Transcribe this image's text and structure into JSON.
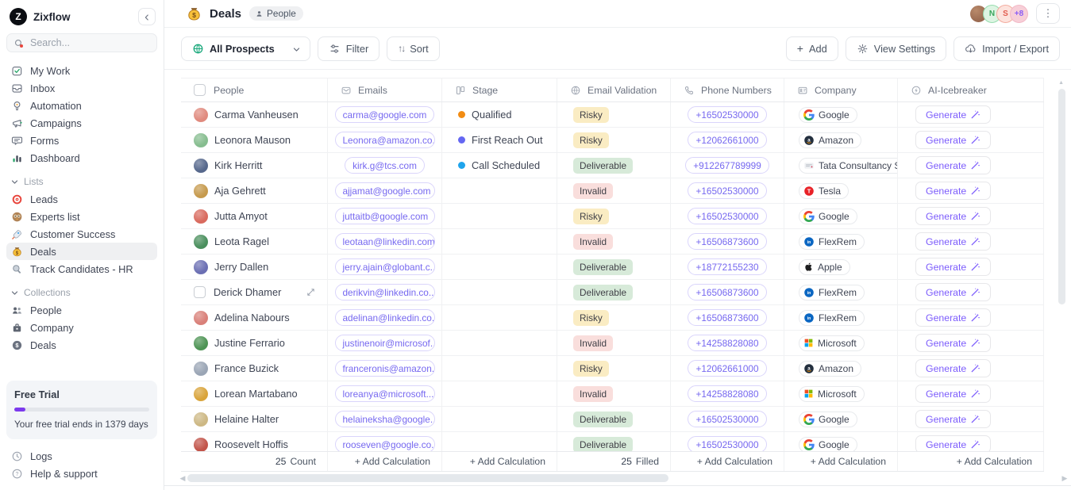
{
  "app": {
    "name": "Zixflow",
    "logo_letter": "Z"
  },
  "sidebar": {
    "search": {
      "placeholder": "Search..."
    },
    "nav_items": [
      {
        "label": "My Work",
        "icon": "task-check-icon"
      },
      {
        "label": "Inbox",
        "icon": "inbox-icon"
      },
      {
        "label": "Automation",
        "icon": "automation-bulb-icon"
      },
      {
        "label": "Campaigns",
        "icon": "megaphone-icon"
      },
      {
        "label": "Forms",
        "icon": "form-chat-icon"
      },
      {
        "label": "Dashboard",
        "icon": "bar-chart-icon"
      }
    ],
    "sections": [
      {
        "label": "Lists",
        "items": [
          {
            "label": "Leads",
            "icon": "target-icon",
            "active": false
          },
          {
            "label": "Experts list",
            "icon": "owl-icon",
            "active": false
          },
          {
            "label": "Customer Success",
            "icon": "rocket-icon",
            "active": false
          },
          {
            "label": "Deals",
            "icon": "moneybag-icon",
            "active": true
          },
          {
            "label": "Track Candidates - HR",
            "icon": "magnifier-icon",
            "active": false
          }
        ]
      },
      {
        "label": "Collections",
        "items": [
          {
            "label": "People",
            "icon": "people-icon",
            "active": false
          },
          {
            "label": "Company",
            "icon": "building-icon",
            "active": false
          },
          {
            "label": "Deals",
            "icon": "dollar-icon",
            "active": false
          }
        ]
      }
    ],
    "trial": {
      "title": "Free Trial",
      "progress_percent": 8,
      "note": "Your free trial ends in 1379 days"
    },
    "bottom_items": [
      {
        "label": "Logs",
        "icon": "logs-icon"
      },
      {
        "label": "Help & support",
        "icon": "help-icon"
      }
    ]
  },
  "header": {
    "title": "Deals",
    "badge": "People",
    "avatars": [
      {
        "type": "photo",
        "bg": "#8A5A44"
      },
      {
        "type": "initial",
        "text": "N",
        "bg": "#DDF5E3",
        "border": "#97DCAE",
        "color": "#3BA55D"
      },
      {
        "type": "initial",
        "text": "S",
        "bg": "#FDE3DD",
        "border": "#F3AC9F",
        "color": "#E25C4F"
      },
      {
        "type": "initial",
        "text": "+8",
        "bg": "#F7CFD8",
        "border": "#F2B9C6",
        "color": "#8B5CF6"
      }
    ]
  },
  "toolbar": {
    "view_selector": {
      "label": "All Prospects",
      "icon": "globe-icon"
    },
    "filter": {
      "label": "Filter",
      "icon": "sliders-icon"
    },
    "sort": {
      "label": "Sort",
      "icon": "sort-arrows-icon"
    },
    "add": {
      "label": "Add",
      "icon": "plus-icon"
    },
    "view_settings": {
      "label": "View Settings",
      "icon": "gear-icon"
    },
    "import_export": {
      "label": "Import / Export",
      "icon": "cloud-download-icon"
    }
  },
  "table": {
    "columns": [
      {
        "label": "People",
        "icon": ""
      },
      {
        "label": "Emails",
        "icon": "envelope-icon"
      },
      {
        "label": "Stage",
        "icon": "kanban-icon"
      },
      {
        "label": "Email Validation",
        "icon": "globe-grid-icon"
      },
      {
        "label": "Phone Numbers",
        "icon": "phone-icon"
      },
      {
        "label": "Company",
        "icon": "id-card-icon"
      },
      {
        "label": "AI-Icebreaker",
        "icon": "ai-spark-icon"
      }
    ],
    "generate_label": "Generate",
    "stage_colors": {
      "Qualified": "#F28C13",
      "First Reach Out": "#6467F2",
      "Call Scheduled": "#1FA4EC"
    },
    "validation_colors": {
      "Risky": "#FAECC3",
      "Deliverable": "#D7EAD9",
      "Invalid": "#F9DEDC"
    },
    "rows": [
      {
        "name": "Carma Vanheusen",
        "avatar_color": "#E08A7E",
        "email": "carma@google.com",
        "stage": "Qualified",
        "validation": "Risky",
        "phone": "+16502530000",
        "company": "Google",
        "logo": "google",
        "checkbox": false,
        "expand": false
      },
      {
        "name": "Leonora Mauson",
        "avatar_color": "#86BD8F",
        "email": "Leonora@amazon.co...",
        "stage": "First Reach Out",
        "validation": "Risky",
        "phone": "+12062661000",
        "company": "Amazon",
        "logo": "amazon",
        "checkbox": false,
        "expand": false
      },
      {
        "name": "Kirk Herritt",
        "avatar_color": "#56688C",
        "email": "kirk.g@tcs.com",
        "stage": "Call Scheduled",
        "validation": "Deliverable",
        "phone": "+912267789999",
        "company": "Tata Consultancy Servi",
        "logo": "tcs",
        "checkbox": false,
        "expand": false
      },
      {
        "name": "Aja Gehrett",
        "avatar_color": "#C69A4D",
        "email": "ajjamat@google.com",
        "stage": "",
        "validation": "Invalid",
        "phone": "+16502530000",
        "company": "Tesla",
        "logo": "tesla",
        "checkbox": false,
        "expand": false
      },
      {
        "name": "Jutta Amyot",
        "avatar_color": "#D96A5E",
        "email": "juttaitb@google.com",
        "stage": "",
        "validation": "Risky",
        "phone": "+16502530000",
        "company": "Google",
        "logo": "google",
        "checkbox": false,
        "expand": false
      },
      {
        "name": "Leota Ragel",
        "avatar_color": "#4A8F5D",
        "email": "leotaan@linkedin.com",
        "stage": "",
        "validation": "Invalid",
        "phone": "+16506873600",
        "company": "FlexRem",
        "logo": "linkedin",
        "checkbox": false,
        "expand": false
      },
      {
        "name": "Jerry Dallen",
        "avatar_color": "#6B6FB3",
        "email": "jerry.ajain@globant.c...",
        "stage": "",
        "validation": "Deliverable",
        "phone": "+18772155230",
        "company": "Apple",
        "logo": "apple",
        "checkbox": false,
        "expand": false
      },
      {
        "name": "Derick Dhamer",
        "avatar_color": "#B9BEC7",
        "email": "derikvin@linkedin.co...",
        "stage": "",
        "validation": "Deliverable",
        "phone": "+16506873600",
        "company": "FlexRem",
        "logo": "linkedin",
        "checkbox": true,
        "expand": true
      },
      {
        "name": "Adelina Nabours",
        "avatar_color": "#D98079",
        "email": "adelinan@linkedin.co...",
        "stage": "",
        "validation": "Risky",
        "phone": "+16506873600",
        "company": "FlexRem",
        "logo": "linkedin",
        "checkbox": false,
        "expand": false
      },
      {
        "name": "Justine Ferrario",
        "avatar_color": "#4E9455",
        "email": "justinenoir@microsof...",
        "stage": "",
        "validation": "Invalid",
        "phone": "+14258828080",
        "company": "Microsoft",
        "logo": "microsoft",
        "checkbox": false,
        "expand": false
      },
      {
        "name": "France Buzick",
        "avatar_color": "#9AA5B5",
        "email": "franceronis@amazon...",
        "stage": "",
        "validation": "Risky",
        "phone": "+12062661000",
        "company": "Amazon",
        "logo": "amazon",
        "checkbox": false,
        "expand": false
      },
      {
        "name": "Lorean Martabano",
        "avatar_color": "#D9A43B",
        "email": "loreanya@microsoft....",
        "stage": "",
        "validation": "Invalid",
        "phone": "+14258828080",
        "company": "Microsoft",
        "logo": "microsoft",
        "checkbox": false,
        "expand": false
      },
      {
        "name": "Helaine Halter",
        "avatar_color": "#CDB884",
        "email": "helaineksha@google....",
        "stage": "",
        "validation": "Deliverable",
        "phone": "+16502530000",
        "company": "Google",
        "logo": "google",
        "checkbox": false,
        "expand": false
      },
      {
        "name": "Roosevelt Hoffis",
        "avatar_color": "#C2544A",
        "email": "rooseven@google.co...",
        "stage": "",
        "validation": "Deliverable",
        "phone": "+16502530000",
        "company": "Google",
        "logo": "google",
        "checkbox": false,
        "expand": false
      }
    ],
    "footer": {
      "count_value": "25",
      "count_label": "Count",
      "filled_value": "25",
      "filled_label": "Filled",
      "add_calculation": "+ Add Calculation"
    }
  }
}
